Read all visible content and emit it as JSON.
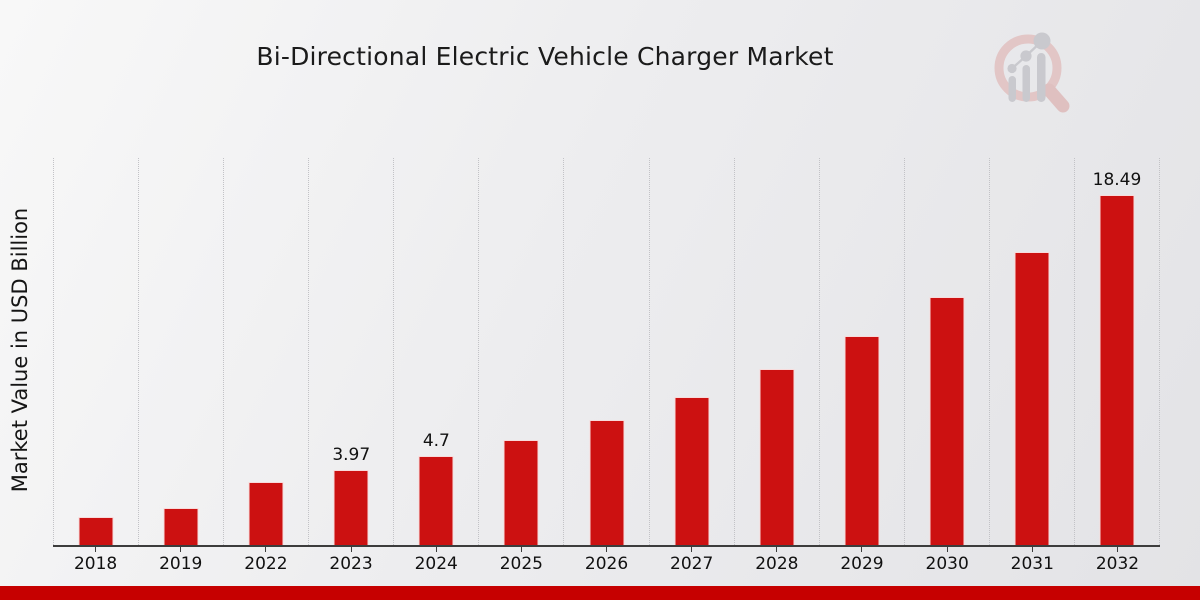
{
  "chart_data": {
    "type": "bar",
    "title": "Bi-Directional Electric Vehicle Charger Market",
    "ylabel": "Market Value in USD Billion",
    "xlabel": "",
    "categories": [
      "2018",
      "2019",
      "2022",
      "2023",
      "2024",
      "2025",
      "2026",
      "2027",
      "2028",
      "2029",
      "2030",
      "2031",
      "2032"
    ],
    "values": [
      1.48,
      1.97,
      3.35,
      3.97,
      4.7,
      5.57,
      6.61,
      7.84,
      9.3,
      11.03,
      13.08,
      15.51,
      18.49
    ],
    "bar_labels": [
      "",
      "",
      "",
      "3.97",
      "4.7",
      "",
      "",
      "",
      "",
      "",
      "",
      "",
      "18.49"
    ],
    "ylim": [
      0,
      20.45
    ],
    "grid": "vertical-dotted",
    "legend": "none",
    "bar_color": "#cc1111"
  },
  "colors": {
    "bar": "#cc1111",
    "bottom_band": "#c60000",
    "gridline": "#c2c2c6",
    "axis_line": "#3c3c3c",
    "text": "#111111",
    "logo_ring": "#e2c6c6",
    "logo_gray": "#c9c9ce"
  },
  "icons": {
    "watermark": "magnifier-bar-chart-logo-icon"
  }
}
